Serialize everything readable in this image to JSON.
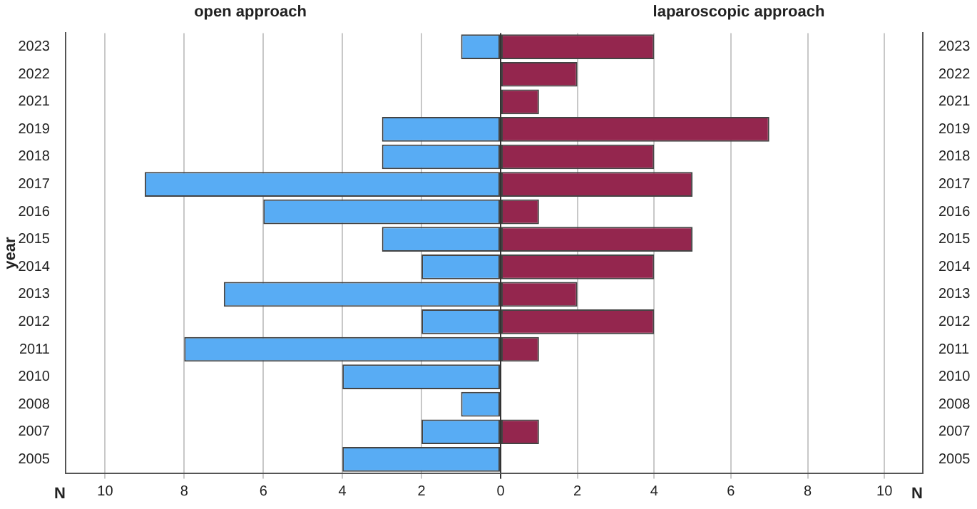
{
  "chart_data": [
    {
      "type": "bar",
      "orientation": "horizontal",
      "title": "open approach",
      "xlabel": "N",
      "ylabel": "year",
      "categories": [
        "2023",
        "2022",
        "2021",
        "2019",
        "2018",
        "2017",
        "2016",
        "2015",
        "2014",
        "2013",
        "2012",
        "2011",
        "2010",
        "2008",
        "2007",
        "2005"
      ],
      "values": [
        1,
        0,
        0,
        3,
        3,
        9,
        6,
        3,
        2,
        7,
        2,
        8,
        4,
        1,
        2,
        4
      ],
      "color": "#58acf4",
      "xlim": [
        11,
        0
      ],
      "xticks": [
        10,
        8,
        6,
        4,
        2,
        0
      ],
      "grid": "x"
    },
    {
      "type": "bar",
      "orientation": "horizontal",
      "title": "laparoscopic approach",
      "xlabel": "N",
      "categories": [
        "2023",
        "2022",
        "2021",
        "2019",
        "2018",
        "2017",
        "2016",
        "2015",
        "2014",
        "2013",
        "2012",
        "2011",
        "2010",
        "2008",
        "2007",
        "2005"
      ],
      "values": [
        4,
        2,
        1,
        7,
        4,
        5,
        1,
        5,
        4,
        2,
        4,
        1,
        0,
        0,
        1,
        0
      ],
      "color": "#94264e",
      "xlim": [
        0,
        11
      ],
      "xticks": [
        {
          "value": 0,
          "label": null
        },
        2,
        4,
        6,
        8,
        10
      ],
      "grid": "x"
    }
  ]
}
